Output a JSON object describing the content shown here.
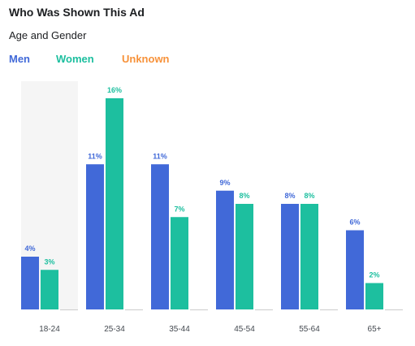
{
  "title": "Who Was Shown This Ad",
  "subtitle": "Age and Gender",
  "colors": {
    "men": "#4169d8",
    "women": "#1dbf9f",
    "unknown": "#f7923a",
    "highlight": "#f5f5f5",
    "baseline": "#cccccc"
  },
  "chart_data": {
    "type": "bar",
    "title": "Who Was Shown This Ad",
    "subtitle": "Age and Gender",
    "categories": [
      "18-24",
      "25-34",
      "35-44",
      "45-54",
      "55-64",
      "65+"
    ],
    "series": [
      {
        "name": "Men",
        "values": [
          4,
          11,
          11,
          9,
          8,
          6
        ]
      },
      {
        "name": "Women",
        "values": [
          3,
          16,
          7,
          8,
          8,
          2
        ]
      },
      {
        "name": "Unknown",
        "values": [
          0,
          0,
          0,
          0,
          0,
          0
        ]
      }
    ],
    "value_labels": {
      "Men": [
        "4%",
        "11%",
        "11%",
        "9%",
        "8%",
        "6%"
      ],
      "Women": [
        "3%",
        "16%",
        "7%",
        "8%",
        "8%",
        "2%"
      ]
    },
    "highlighted_category": "18-24",
    "ylim": [
      0,
      16
    ],
    "grid": false,
    "legend": "top-left"
  }
}
